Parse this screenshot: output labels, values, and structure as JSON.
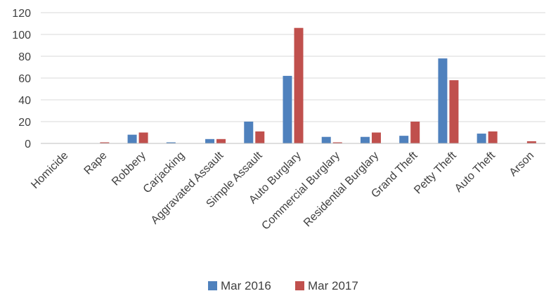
{
  "chart_data": {
    "type": "bar",
    "categories": [
      "Homicide",
      "Rape",
      "Robbery",
      "Carjacking",
      "Aggravated Assault",
      "Simple Assault",
      "Auto Burglary",
      "Commercial Burglary",
      "Residential Burglary",
      "Grand Theft",
      "Petty Theft",
      "Auto Theft",
      "Arson"
    ],
    "series": [
      {
        "name": "Mar 2016",
        "color": "#4f81bd",
        "values": [
          0,
          0,
          8,
          1,
          4,
          20,
          62,
          6,
          6,
          7,
          78,
          9,
          0
        ]
      },
      {
        "name": "Mar 2017",
        "color": "#c0504d",
        "values": [
          0,
          1,
          10,
          0,
          4,
          11,
          106,
          1,
          10,
          20,
          58,
          11,
          2
        ]
      }
    ],
    "ylim": [
      0,
      120
    ],
    "yticks": [
      0,
      20,
      40,
      60,
      80,
      100,
      120
    ],
    "grid": true,
    "legend": "bottom"
  }
}
